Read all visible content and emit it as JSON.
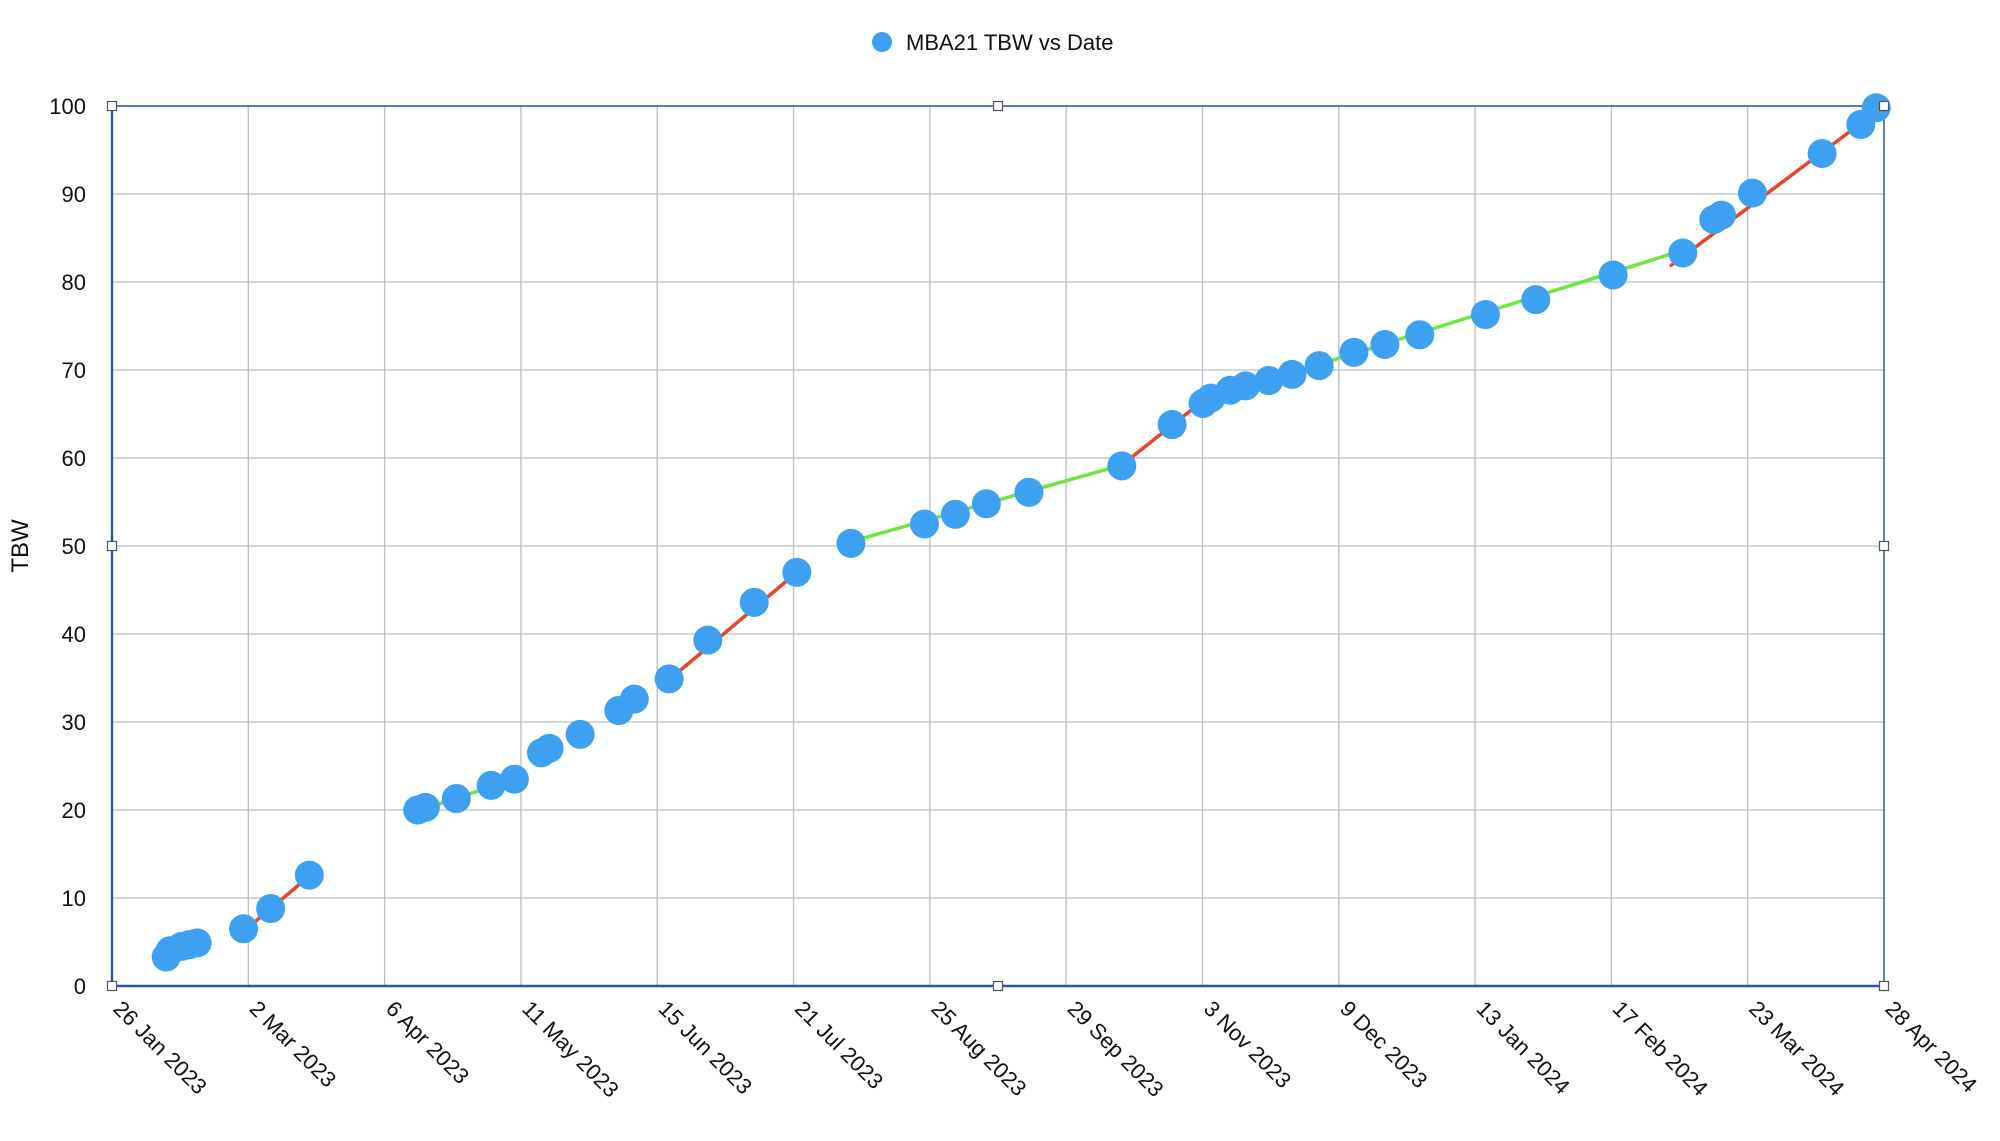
{
  "chart_data": {
    "type": "scatter",
    "title": "",
    "legend": {
      "position": "top-center",
      "entries": [
        "MBA21 TBW vs Date"
      ]
    },
    "xlabel": "",
    "ylabel": "TBW",
    "ylim": [
      0,
      100
    ],
    "y_ticks": [
      0,
      10,
      20,
      30,
      40,
      50,
      60,
      70,
      80,
      90,
      100
    ],
    "x_ticks": [
      "26 Jan 2023",
      "2 Mar 2023",
      "6 Apr 2023",
      "11 May 2023",
      "15 Jun 2023",
      "21 Jul 2023",
      "25 Aug 2023",
      "29 Sep 2023",
      "3 Nov 2023",
      "9 Dec 2023",
      "13 Jan 2024",
      "17 Feb 2024",
      "23 Mar 2024",
      "28 Apr 2024"
    ],
    "xlim": [
      "2023-01-26",
      "2024-04-28"
    ],
    "grid": true,
    "colors": {
      "points": "#3da0f0",
      "trend_fast": "#e8442a",
      "trend_slow": "#6ae83c",
      "grid": "#b7bfca",
      "frame": "#2b56a8"
    },
    "series": [
      {
        "name": "MBA21 TBW vs Date",
        "points": [
          {
            "x": "2023-02-09",
            "y": 3.3
          },
          {
            "x": "2023-02-10",
            "y": 4.0
          },
          {
            "x": "2023-02-13",
            "y": 4.5
          },
          {
            "x": "2023-02-15",
            "y": 4.7
          },
          {
            "x": "2023-02-17",
            "y": 4.9
          },
          {
            "x": "2023-03-01",
            "y": 6.5
          },
          {
            "x": "2023-03-08",
            "y": 8.8
          },
          {
            "x": "2023-03-18",
            "y": 12.6
          },
          {
            "x": "2023-04-15",
            "y": 20.0
          },
          {
            "x": "2023-04-17",
            "y": 20.3
          },
          {
            "x": "2023-04-25",
            "y": 21.3
          },
          {
            "x": "2023-05-04",
            "y": 22.8
          },
          {
            "x": "2023-05-10",
            "y": 23.5
          },
          {
            "x": "2023-05-17",
            "y": 26.5
          },
          {
            "x": "2023-05-19",
            "y": 27.0
          },
          {
            "x": "2023-05-27",
            "y": 28.6
          },
          {
            "x": "2023-06-06",
            "y": 31.3
          },
          {
            "x": "2023-06-10",
            "y": 32.6
          },
          {
            "x": "2023-06-19",
            "y": 34.9
          },
          {
            "x": "2023-06-29",
            "y": 39.3
          },
          {
            "x": "2023-07-11",
            "y": 43.6
          },
          {
            "x": "2023-07-22",
            "y": 47.0
          },
          {
            "x": "2023-08-05",
            "y": 50.3
          },
          {
            "x": "2023-08-24",
            "y": 52.5
          },
          {
            "x": "2023-09-01",
            "y": 53.6
          },
          {
            "x": "2023-09-09",
            "y": 54.8
          },
          {
            "x": "2023-09-20",
            "y": 56.1
          },
          {
            "x": "2023-10-14",
            "y": 59.1
          },
          {
            "x": "2023-10-27",
            "y": 63.8
          },
          {
            "x": "2023-11-04",
            "y": 66.2
          },
          {
            "x": "2023-11-06",
            "y": 66.8
          },
          {
            "x": "2023-11-11",
            "y": 67.7
          },
          {
            "x": "2023-11-15",
            "y": 68.2
          },
          {
            "x": "2023-11-21",
            "y": 68.8
          },
          {
            "x": "2023-11-27",
            "y": 69.5
          },
          {
            "x": "2023-12-04",
            "y": 70.5
          },
          {
            "x": "2023-12-13",
            "y": 72.0
          },
          {
            "x": "2023-12-21",
            "y": 72.9
          },
          {
            "x": "2023-12-30",
            "y": 74.0
          },
          {
            "x": "2024-01-16",
            "y": 76.3
          },
          {
            "x": "2024-01-29",
            "y": 78.0
          },
          {
            "x": "2024-02-18",
            "y": 80.8
          },
          {
            "x": "2024-03-07",
            "y": 83.3
          },
          {
            "x": "2024-03-15",
            "y": 87.1
          },
          {
            "x": "2024-03-17",
            "y": 87.6
          },
          {
            "x": "2024-03-25",
            "y": 90.1
          },
          {
            "x": "2024-04-12",
            "y": 94.6
          },
          {
            "x": "2024-04-22",
            "y": 97.9
          },
          {
            "x": "2024-04-26",
            "y": 99.8
          }
        ]
      }
    ],
    "trend_segments": [
      {
        "color": "trend_fast",
        "x": [
          "2023-03-01",
          "2023-03-18"
        ],
        "y": [
          6.2,
          12.5
        ]
      },
      {
        "color": "trend_slow",
        "x": [
          "2023-04-15",
          "2023-05-10"
        ],
        "y": [
          19.9,
          23.5
        ]
      },
      {
        "color": "trend_fast",
        "x": [
          "2023-06-19",
          "2023-07-22"
        ],
        "y": [
          34.8,
          47.0
        ]
      },
      {
        "color": "trend_slow",
        "x": [
          "2023-08-05",
          "2023-10-14"
        ],
        "y": [
          50.5,
          59.2
        ]
      },
      {
        "color": "trend_fast",
        "x": [
          "2023-10-14",
          "2023-11-04"
        ],
        "y": [
          59.2,
          66.5
        ]
      },
      {
        "color": "trend_slow",
        "x": [
          "2023-11-04",
          "2024-03-07"
        ],
        "y": [
          66.5,
          83.6
        ]
      },
      {
        "color": "trend_fast",
        "x": [
          "2024-03-04",
          "2024-04-28"
        ],
        "y": [
          81.9,
          100.0
        ]
      }
    ]
  }
}
